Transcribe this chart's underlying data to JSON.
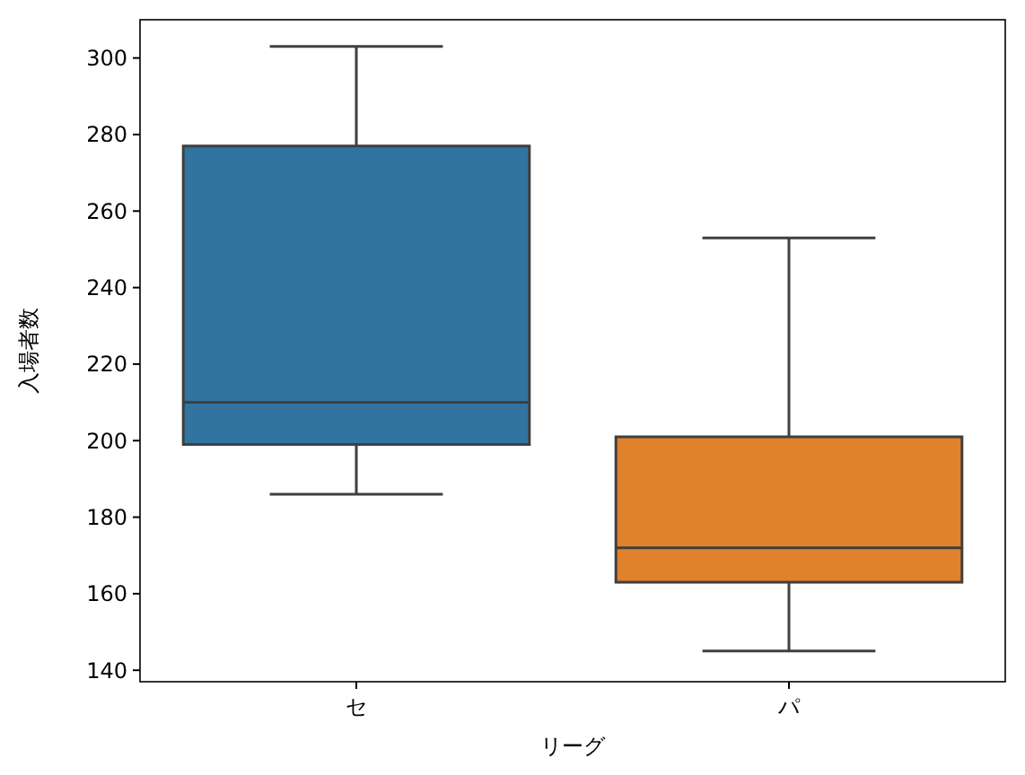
{
  "chart_data": {
    "type": "box",
    "xlabel": "リーグ",
    "ylabel": "入場者数",
    "categories": [
      "セ",
      "パ"
    ],
    "colors": [
      "#3274a1",
      "#e1812c"
    ],
    "boxes": [
      {
        "low": 186,
        "q1": 199,
        "median": 210,
        "q3": 277,
        "high": 303
      },
      {
        "low": 145,
        "q1": 163,
        "median": 172,
        "q3": 201,
        "high": 253
      }
    ],
    "ylim": [
      137,
      310
    ],
    "yticks": [
      140,
      160,
      180,
      200,
      220,
      240,
      260,
      280,
      300
    ]
  }
}
